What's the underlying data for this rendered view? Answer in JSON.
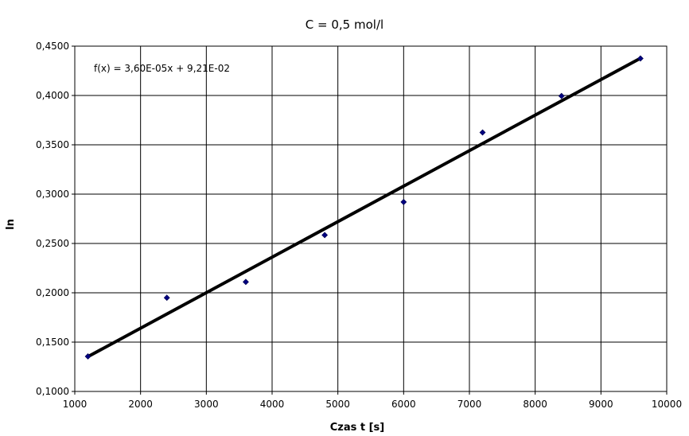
{
  "chart_data": {
    "type": "scatter",
    "title": "C = 0,5 mol/l",
    "xlabel": "Czas t [s]",
    "ylabel": "ln",
    "xlim": [
      1000,
      10000
    ],
    "ylim": [
      0.1,
      0.45
    ],
    "x_ticks": [
      1000,
      2000,
      3000,
      4000,
      5000,
      6000,
      7000,
      8000,
      9000,
      10000
    ],
    "x_tick_labels": [
      "1000",
      "2000",
      "3000",
      "4000",
      "5000",
      "6000",
      "7000",
      "8000",
      "9000",
      "10000"
    ],
    "y_ticks": [
      0.1,
      0.15,
      0.2,
      0.25,
      0.3,
      0.35,
      0.4,
      0.45
    ],
    "y_tick_labels": [
      "0,1000",
      "0,1500",
      "0,2000",
      "0,2500",
      "0,3000",
      "0,3500",
      "0,4000",
      "0,4500"
    ],
    "grid": true,
    "legend": "none",
    "series": [
      {
        "x": [
          1200,
          2400,
          3600,
          4800,
          6000,
          7200,
          8400,
          9600
        ],
        "y": [
          0.1355,
          0.195,
          0.211,
          0.2585,
          0.292,
          0.3625,
          0.3995,
          0.4375
        ],
        "marker": "diamond",
        "color": "#000080"
      }
    ],
    "trendline": {
      "slope": 3.6e-05,
      "intercept": 0.0921,
      "x_range": [
        1200,
        9600
      ],
      "color": "#000000",
      "equation": "f(x) = 3,60E-05x + 9,21E-02"
    }
  }
}
